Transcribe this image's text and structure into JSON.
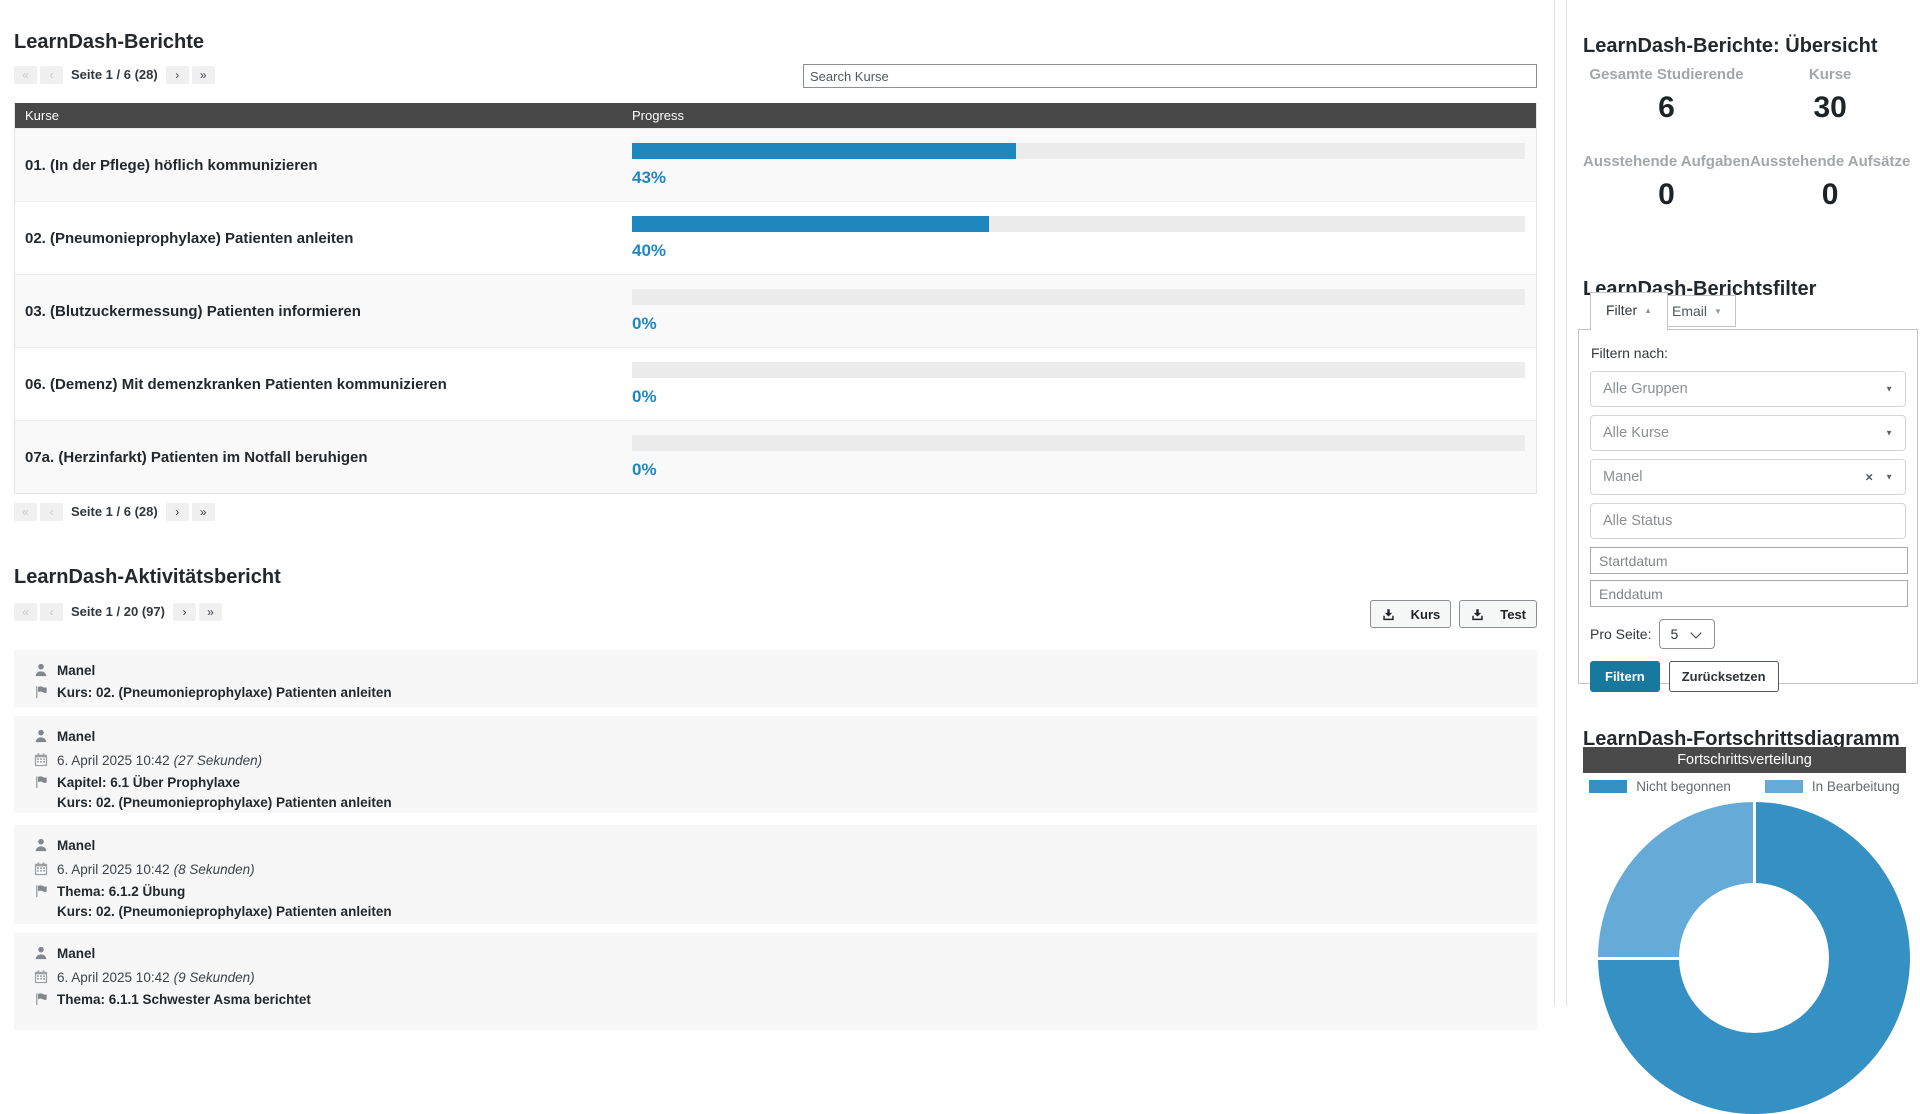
{
  "glyphs": {
    "first": "«",
    "prev": "‹",
    "next": "›",
    "last": "»",
    "clear": "×",
    "up_arrow": "▲",
    "down_arrow": "▼"
  },
  "main": {
    "title": "LearnDash-Berichte",
    "courses_pagination": "Seite 1 / 6 (28)",
    "search_placeholder": "Search Kurse",
    "table": {
      "col_course": "Kurse",
      "col_progress": "Progress",
      "rows": [
        {
          "course": "01. (In der Pflege) höflich kommunizieren",
          "progress": 43,
          "label": "43%"
        },
        {
          "course": "02. (Pneumonieprophylaxe) Patienten anleiten",
          "progress": 40,
          "label": "40%"
        },
        {
          "course": "03. (Blutzuckermessung) Patienten informieren",
          "progress": 0,
          "label": "0%"
        },
        {
          "course": "06. (Demenz) Mit demenzkranken Patienten kommunizieren",
          "progress": 0,
          "label": "0%"
        },
        {
          "course": "07a. (Herzinfarkt) Patienten im Notfall beruhigen",
          "progress": 0,
          "label": "0%"
        }
      ]
    },
    "activity": {
      "title": "LearnDash-Aktivitätsbericht",
      "pagination": "Seite 1 / 20 (97)",
      "export_course": "Kurs",
      "export_quiz": "Test",
      "entries": [
        {
          "user": "Manel",
          "step": "Kurs: 02. (Pneumonieprophylaxe) Patienten anleiten"
        },
        {
          "user": "Manel",
          "timestamp": "6. April 2025 10:42",
          "duration": "(27 Sekunden)",
          "step": "Kapitel: 6.1 Über Prophylaxe",
          "course": "Kurs: 02. (Pneumonieprophylaxe) Patienten anleiten"
        },
        {
          "user": "Manel",
          "timestamp": "6. April 2025 10:42",
          "duration": "(8 Sekunden)",
          "step": "Thema: 6.1.2 Übung",
          "course": "Kurs: 02. (Pneumonieprophylaxe) Patienten anleiten"
        },
        {
          "user": "Manel",
          "timestamp": "6. April 2025 10:42",
          "duration": "(9 Sekunden)",
          "step": "Thema: 6.1.1 Schwester Asma berichtet"
        }
      ]
    }
  },
  "sidebar": {
    "overview_title": "LearnDash-Berichte: Übersicht",
    "stats": [
      {
        "label": "Gesamte Studierende",
        "value": "6"
      },
      {
        "label": "Kurse",
        "value": "30"
      },
      {
        "label": "Ausstehende Aufgaben",
        "value": "0"
      },
      {
        "label": "Ausstehende Aufsätze",
        "value": "0"
      }
    ],
    "filter": {
      "title": "LearnDash-Berichtsfilter",
      "tab_filter": "Filter",
      "tab_email": "Email",
      "filter_by": "Filtern nach:",
      "group_placeholder": "Alle Gruppen",
      "course_placeholder": "Alle Kurse",
      "user_value": "Manel",
      "status_placeholder": "Alle Status",
      "start_date_placeholder": "Startdatum",
      "end_date_placeholder": "Enddatum",
      "per_page_label": "Pro Seite:",
      "per_page_value": "5",
      "submit": "Filtern",
      "reset": "Zurücksetzen"
    },
    "chart_title": "LearnDash-Fortschrittsdiagramm"
  },
  "chart_data": {
    "type": "pie",
    "donut": true,
    "title": "Fortschrittsverteilung",
    "labels": [
      "Nicht begonnen",
      "In Bearbeitung"
    ],
    "values": [
      75,
      25
    ],
    "values_unit": "percent, estimated from arc angles (270° / 90°)",
    "colors": [
      "#3590c4",
      "#66abd8"
    ],
    "donut_hole_ratio": 0.48,
    "legend_position": "top",
    "clockwise_from_top": true,
    "note": "bottom of donut is cut off by the viewport"
  },
  "colors": {
    "accent_blue": "#1e87c0",
    "button_blue": "#17799e",
    "header_dark": "#474747",
    "card_bg": "#f7f7f7"
  }
}
